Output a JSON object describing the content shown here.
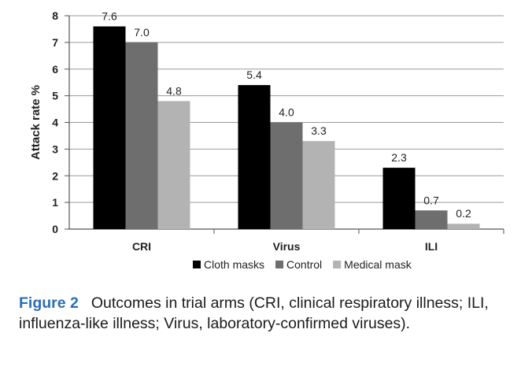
{
  "chart_data": {
    "type": "bar",
    "categories": [
      "CRI",
      "Virus",
      "ILI"
    ],
    "series": [
      {
        "name": "Cloth masks",
        "values": [
          7.6,
          5.4,
          2.3
        ],
        "value_labels": [
          "7.6",
          "5.4",
          "2.3"
        ],
        "color": "#000000"
      },
      {
        "name": "Control",
        "values": [
          7.0,
          4.0,
          0.7
        ],
        "value_labels": [
          "7.0",
          "4.0",
          "0.7"
        ],
        "color": "#6e6e6e"
      },
      {
        "name": "Medical mask",
        "values": [
          4.8,
          3.3,
          0.2
        ],
        "value_labels": [
          "4.8",
          "3.3",
          "0.2"
        ],
        "color": "#b3b3b3"
      }
    ],
    "title": "",
    "xlabel": "",
    "ylabel": "Attack rate %",
    "ylim": [
      0,
      8
    ],
    "yticks": [
      0,
      1,
      2,
      3,
      4,
      5,
      6,
      7,
      8
    ],
    "grid": true,
    "legend_position": "bottom"
  },
  "caption": {
    "label": "Figure 2",
    "text": "Outcomes in trial arms (CRI, clinical respiratory illness; ILI, influenza-like illness; Virus, laboratory-confirmed viruses)."
  }
}
